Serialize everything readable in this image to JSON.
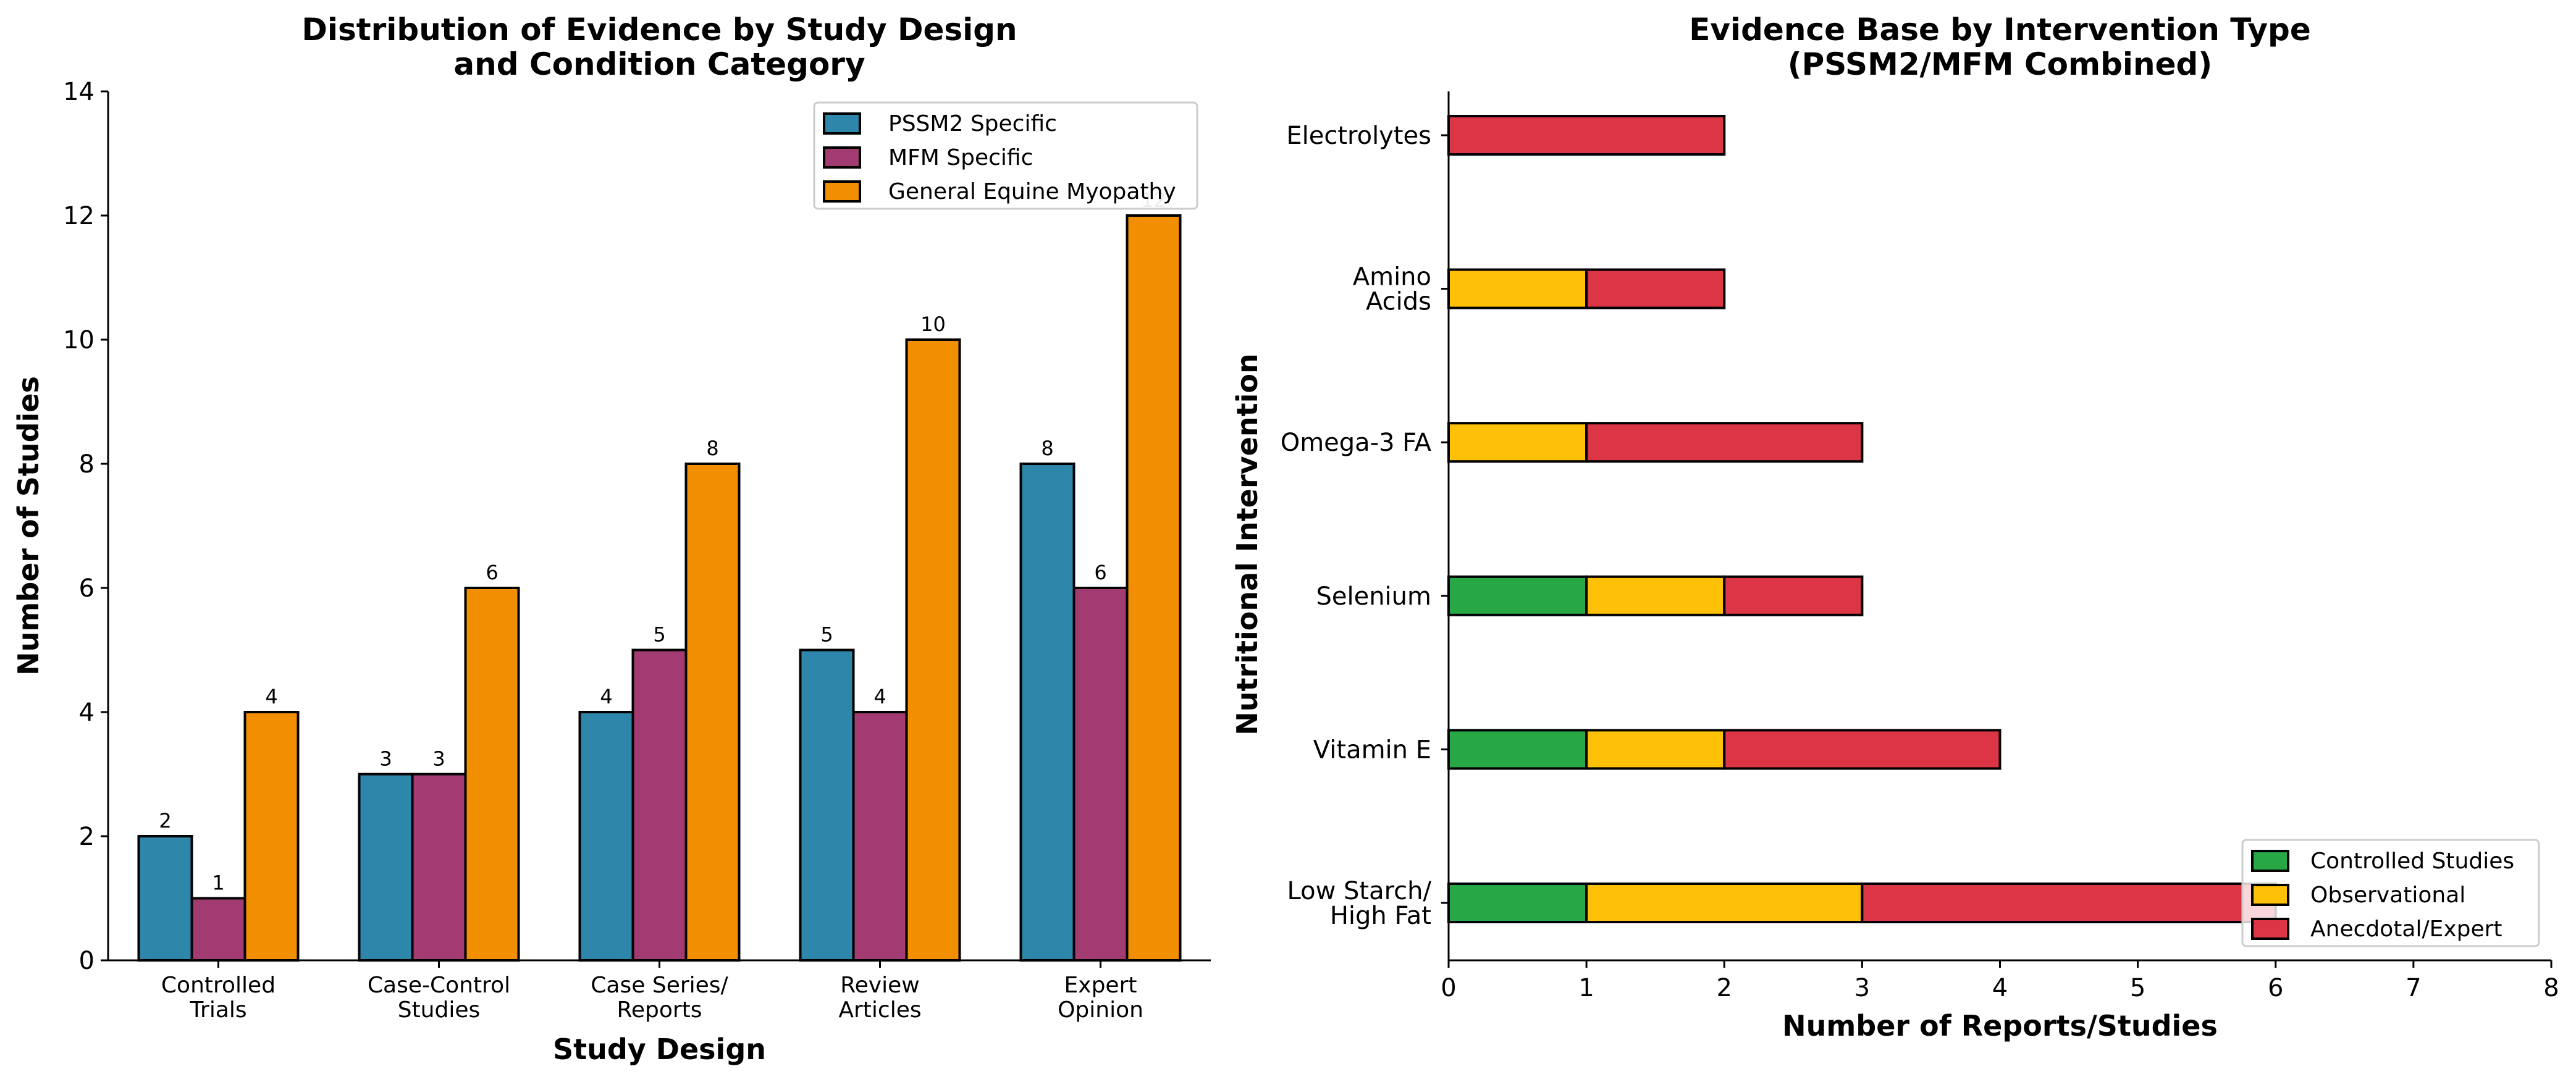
{
  "chart_data": [
    {
      "type": "bar",
      "title": "Distribution of Evidence by Study Design\nand Condition Category",
      "xlabel": "Study Design",
      "ylabel": "Number of Studies",
      "ylim": [
        0,
        14
      ],
      "yticks": [
        0,
        2,
        4,
        6,
        8,
        10,
        12,
        14
      ],
      "categories": [
        "Controlled\nTrials",
        "Case-Control\nStudies",
        "Case Series/\nReports",
        "Review\nArticles",
        "Expert\nOpinion"
      ],
      "series": [
        {
          "name": "PSSM2 Specific",
          "color": "#2E86AB",
          "values": [
            2,
            3,
            4,
            5,
            8
          ]
        },
        {
          "name": "MFM Specific",
          "color": "#A23B72",
          "values": [
            1,
            3,
            5,
            4,
            6
          ]
        },
        {
          "name": "General Equine Myopathy",
          "color": "#F18F01",
          "values": [
            4,
            6,
            8,
            10,
            12
          ]
        }
      ],
      "legend": "top-right",
      "grid": false
    },
    {
      "type": "bar",
      "orientation": "horizontal-stacked",
      "title": "Evidence Base by Intervention Type\n(PSSM2/MFM Combined)",
      "xlabel": "Number of Reports/Studies",
      "ylabel": "Nutritional Intervention",
      "xlim": [
        0,
        8
      ],
      "xticks": [
        0,
        1,
        2,
        3,
        4,
        5,
        6,
        7,
        8
      ],
      "categories": [
        "Low Starch/\nHigh Fat",
        "Vitamin E",
        "Selenium",
        "Omega-3 FA",
        "Amino\nAcids",
        "Electrolytes"
      ],
      "series": [
        {
          "name": "Controlled Studies",
          "color": "#28A745",
          "values": [
            1,
            1,
            1,
            0,
            0,
            0
          ]
        },
        {
          "name": "Observational",
          "color": "#FFC107",
          "values": [
            2,
            1,
            1,
            1,
            1,
            0
          ]
        },
        {
          "name": "Anecdotal/Expert",
          "color": "#DC3545",
          "values": [
            3,
            2,
            1,
            2,
            1,
            2
          ]
        }
      ],
      "legend": "bottom-right",
      "grid": false
    }
  ]
}
